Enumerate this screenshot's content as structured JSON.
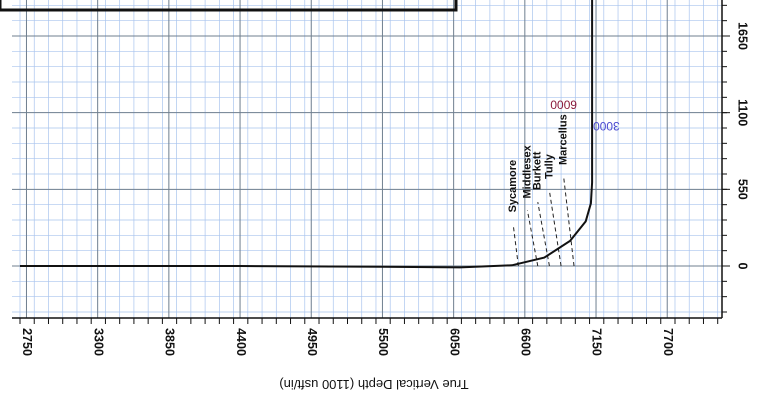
{
  "chart_data": {
    "type": "line",
    "orientation": "rotated-180",
    "xlabel": "True Vertical Depth (1100 usft/in)",
    "x_ticks": [
      2750,
      3300,
      3850,
      4400,
      4950,
      5500,
      6050,
      6600,
      7150,
      7700
    ],
    "y_ticks": [
      0,
      550,
      1100,
      1650
    ],
    "xlim": [
      2700,
      8100
    ],
    "ylim": [
      -330,
      1980
    ],
    "grid": true,
    "grid_minor_x": 110,
    "grid_minor_y": 110,
    "series": [
      {
        "color": "#111111",
        "points": [
          {
            "x": 2700,
            "y": 0
          },
          {
            "x": 4400,
            "y": 0
          },
          {
            "x": 5500,
            "y": -5
          },
          {
            "x": 6100,
            "y": -10
          },
          {
            "x": 6500,
            "y": 5
          },
          {
            "x": 6750,
            "y": 60
          },
          {
            "x": 6950,
            "y": 180
          },
          {
            "x": 7070,
            "y": 320
          },
          {
            "x": 7110,
            "y": 450
          },
          {
            "x": 7120,
            "y": 600
          },
          {
            "x": 7120,
            "y": 900
          },
          {
            "x": 7120,
            "y": 1200
          },
          {
            "x": 7120,
            "y": 1500
          },
          {
            "x": 7120,
            "y": 1980
          }
        ]
      }
    ],
    "formations": [
      {
        "label": "Sycamore",
        "tvd_line": 6550,
        "tvd_label": 6510,
        "vs_label": 370
      },
      {
        "label": "Middlesex",
        "tvd_line": 6700,
        "tvd_label": 6620,
        "vs_label": 470
      },
      {
        "label": "Burkett",
        "tvd_line": 6790,
        "tvd_label": 6700,
        "vs_label": 530
      },
      {
        "label": "Tully",
        "tvd_line": 6880,
        "tvd_label": 6790,
        "vs_label": 610
      },
      {
        "label": "Marcellus",
        "tvd_line": 6980,
        "tvd_label": 6900,
        "vs_label": 710
      }
    ],
    "annotations": [
      {
        "text": "6000",
        "x": 6900,
        "y": 1165,
        "color": "#8b1a3a"
      },
      {
        "text": "3000",
        "x": 7230,
        "y": 1010,
        "color": "#4a4ad0"
      }
    ]
  }
}
